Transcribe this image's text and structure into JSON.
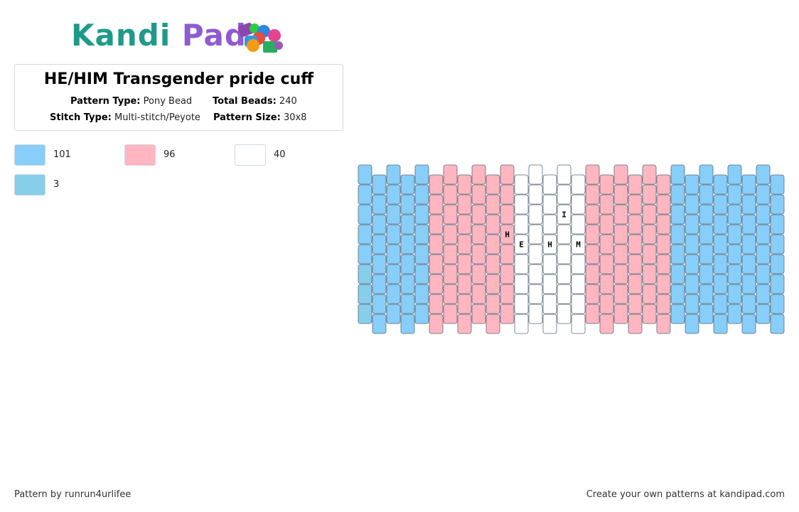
{
  "brand": {
    "logo_part1": "Kandi",
    "logo_part2": "Pad"
  },
  "pattern_info": {
    "title": "HE/HIM Transgender pride cuff",
    "pattern_type_label": "Pattern Type:",
    "pattern_type_value": "Pony Bead",
    "total_beads_label": "Total Beads:",
    "total_beads_value": "240",
    "stitch_type_label": "Stitch Type:",
    "stitch_type_value": "Multi-stitch/Peyote",
    "pattern_size_label": "Pattern Size:",
    "pattern_size_value": "30x8"
  },
  "legend": [
    {
      "color": "#87cefa",
      "count": "101"
    },
    {
      "color": "#ffb6c1",
      "count": "96"
    },
    {
      "color": "#ffffff",
      "count": "40"
    },
    {
      "color": "#87ceeb",
      "count": "3"
    }
  ],
  "pattern": {
    "columns": 30,
    "rows": 8,
    "column_colors": [
      "#87cefa",
      "#87cefa",
      "#87cefa",
      "#87cefa",
      "#87cefa",
      "#ffb6c1",
      "#ffb6c1",
      "#ffb6c1",
      "#ffb6c1",
      "#ffb6c1",
      "#ffb6c1",
      "#ffffff",
      "#ffffff",
      "#ffffff",
      "#ffffff",
      "#ffffff",
      "#ffb6c1",
      "#ffb6c1",
      "#ffb6c1",
      "#ffb6c1",
      "#ffb6c1",
      "#ffb6c1",
      "#87cefa",
      "#87cefa",
      "#87cefa",
      "#87cefa",
      "#87cefa",
      "#87cefa",
      "#87cefa",
      "#87cefa"
    ],
    "alt_color": "#87ceeb",
    "alt_cells": [
      {
        "col": 0,
        "row": 5
      },
      {
        "col": 0,
        "row": 6
      },
      {
        "col": 0,
        "row": 7
      }
    ],
    "letters": [
      {
        "col": 10,
        "row": 3,
        "char": "H"
      },
      {
        "col": 11,
        "row": 3,
        "char": "E"
      },
      {
        "col": 13,
        "row": 3,
        "char": "H"
      },
      {
        "col": 14,
        "row": 2,
        "char": "I"
      },
      {
        "col": 15,
        "row": 3,
        "char": "M"
      }
    ]
  },
  "footer": {
    "credit": "Pattern by runrun4urlifee",
    "cta": "Create your own patterns at kandipad.com"
  }
}
